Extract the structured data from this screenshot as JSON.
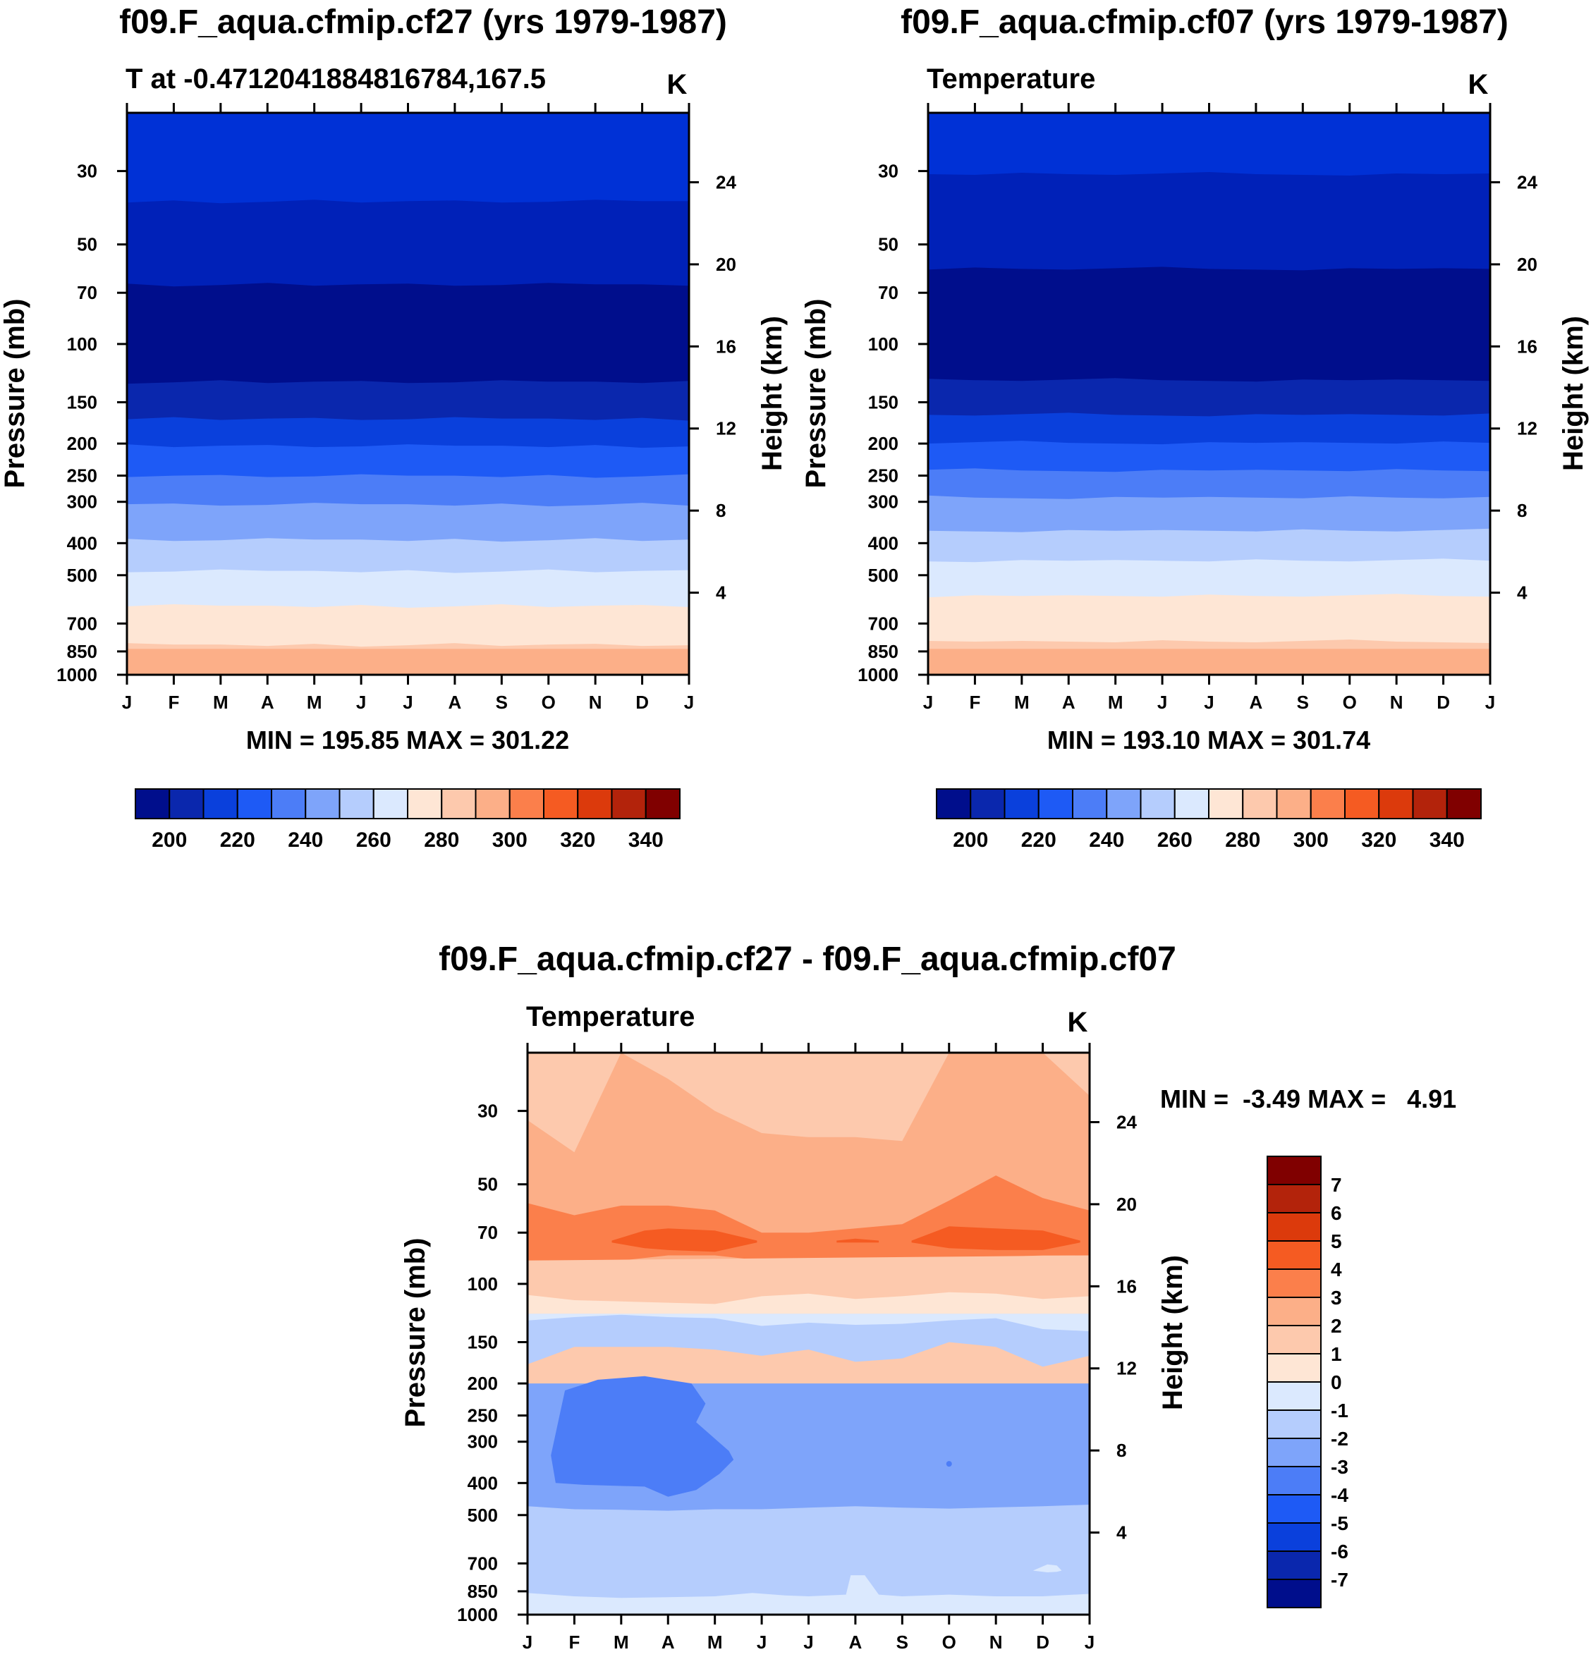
{
  "chart_data": [
    {
      "type": "contour",
      "title": "f09.F_aqua.cfmip.cf27 (yrs 1979-1987)",
      "subtitle": "T at -0.4712041884816784,167.5",
      "units": "K",
      "ylabel": "Pressure (mb)",
      "ylabel_right": "Height (km)",
      "stats": "MIN = 195.85 MAX = 301.22",
      "x_ticks": [
        "J",
        "F",
        "M",
        "A",
        "M",
        "J",
        "J",
        "A",
        "S",
        "O",
        "N",
        "D",
        "J"
      ],
      "levels": [
        {
          "top_p": 20,
          "bottom_p": 38,
          "color": "#0031d6"
        },
        {
          "top_p": 38,
          "bottom_p": 68,
          "color": "#0021b8"
        },
        {
          "top_p": 68,
          "bottom_p": 130,
          "color": "#000e8c"
        },
        {
          "top_p": 130,
          "bottom_p": 170,
          "color": "#0a27ad"
        },
        {
          "top_p": 170,
          "bottom_p": 205,
          "color": "#0a40dc"
        },
        {
          "top_p": 205,
          "bottom_p": 255,
          "color": "#1e5af5"
        },
        {
          "top_p": 255,
          "bottom_p": 315,
          "color": "#4c7df7"
        },
        {
          "top_p": 315,
          "bottom_p": 400,
          "color": "#7ea4fa"
        },
        {
          "top_p": 400,
          "bottom_p": 495,
          "color": "#b5cdfd"
        },
        {
          "top_p": 495,
          "bottom_p": 640,
          "color": "#dbe9fe"
        },
        {
          "top_p": 640,
          "bottom_p": 820,
          "color": "#fee6d5"
        },
        {
          "top_p": 820,
          "bottom_p": 1000,
          "color": "#fdc9ad"
        }
      ],
      "bottom_band": {
        "top_p": 820,
        "bottom_p": 1000,
        "color": "#fcaf88"
      }
    },
    {
      "type": "contour",
      "title": "f09.F_aqua.cfmip.cf07 (yrs 1979-1987)",
      "subtitle": "Temperature",
      "units": "K",
      "ylabel": "Pressure (mb)",
      "ylabel_right": "Height (km)",
      "stats": "MIN = 193.10 MAX = 301.74",
      "x_ticks": [
        "J",
        "F",
        "M",
        "A",
        "M",
        "J",
        "J",
        "A",
        "S",
        "O",
        "N",
        "D",
        "J"
      ]
    },
    {
      "type": "contour",
      "title": "f09.F_aqua.cfmip.cf27 - f09.F_aqua.cfmip.cf07",
      "subtitle": "Temperature",
      "units": "K",
      "ylabel": "Pressure (mb)",
      "ylabel_right": "Height (km)",
      "stats": "MIN =  -3.49 MAX =   4.91",
      "x_ticks": [
        "J",
        "F",
        "M",
        "A",
        "M",
        "J",
        "J",
        "A",
        "S",
        "O",
        "N",
        "D",
        "J"
      ]
    }
  ],
  "axes": {
    "pressure_ticks": [
      30,
      50,
      70,
      100,
      150,
      200,
      250,
      300,
      400,
      500,
      700,
      850,
      1000
    ],
    "height_ticks": [
      24,
      20,
      16,
      12,
      8,
      4
    ],
    "p_top": 20,
    "p_bottom": 1000
  },
  "abs_colorbar": {
    "colors": [
      "#000e8c",
      "#0a27ad",
      "#0a40dc",
      "#1e5af5",
      "#4c7df7",
      "#7ea4fa",
      "#b5cdfd",
      "#dbe9fe",
      "#fee6d5",
      "#fdc9ad",
      "#fcaf88",
      "#fb7f4b",
      "#f55b22",
      "#dc3a0c",
      "#b3230b",
      "#800000"
    ],
    "labels": [
      "200",
      "220",
      "240",
      "260",
      "280",
      "300",
      "320",
      "340"
    ]
  },
  "diff_colorbar": {
    "colors": [
      "#800000",
      "#b3230b",
      "#dc3a0c",
      "#f55b22",
      "#fb7f4b",
      "#fcaf88",
      "#fdc9ad",
      "#fee6d5",
      "#dbe9fe",
      "#b5cdfd",
      "#7ea4fa",
      "#4c7df7",
      "#1e5af5",
      "#0a40dc",
      "#0a27ad",
      "#000e8c"
    ],
    "labels": [
      "7",
      "6",
      "5",
      "4",
      "3",
      "2",
      "1",
      "0",
      "-1",
      "-2",
      "-3",
      "-4",
      "-5",
      "-6",
      "-7"
    ]
  },
  "panel2_levels": [
    {
      "top_p": 20,
      "color": "#0031d6"
    },
    {
      "top_p": 30.5,
      "color": "#0021b8"
    },
    {
      "top_p": 59,
      "color": "#000e8c"
    },
    {
      "top_p": 128,
      "color": "#0a27ad"
    },
    {
      "top_p": 163,
      "color": "#0a40dc"
    },
    {
      "top_p": 198,
      "color": "#1e5af5"
    },
    {
      "top_p": 240,
      "color": "#4c7df7"
    },
    {
      "top_p": 290,
      "color": "#7ea4fa"
    },
    {
      "top_p": 365,
      "color": "#b5cdfd"
    },
    {
      "top_p": 450,
      "color": "#dbe9fe"
    },
    {
      "top_p": 575,
      "color": "#fee6d5"
    },
    {
      "top_p": 790,
      "color": "#fdc9ad"
    },
    {
      "top_p": 995,
      "color": "#fb7f4b"
    }
  ],
  "panel1_levels": [
    {
      "top_p": 20,
      "color": "#0031d6"
    },
    {
      "top_p": 37,
      "color": "#0021b8"
    },
    {
      "top_p": 66,
      "color": "#000e8c"
    },
    {
      "top_p": 130,
      "color": "#0a27ad"
    },
    {
      "top_p": 168,
      "color": "#0a40dc"
    },
    {
      "top_p": 203,
      "color": "#1e5af5"
    },
    {
      "top_p": 250,
      "color": "#4c7df7"
    },
    {
      "top_p": 305,
      "color": "#7ea4fa"
    },
    {
      "top_p": 390,
      "color": "#b5cdfd"
    },
    {
      "top_p": 485,
      "color": "#dbe9fe"
    },
    {
      "top_p": 618,
      "color": "#fee6d5"
    },
    {
      "top_p": 810,
      "color": "#fdc9ad"
    },
    {
      "top_p": 1000,
      "color": "#fdc9ad"
    }
  ]
}
